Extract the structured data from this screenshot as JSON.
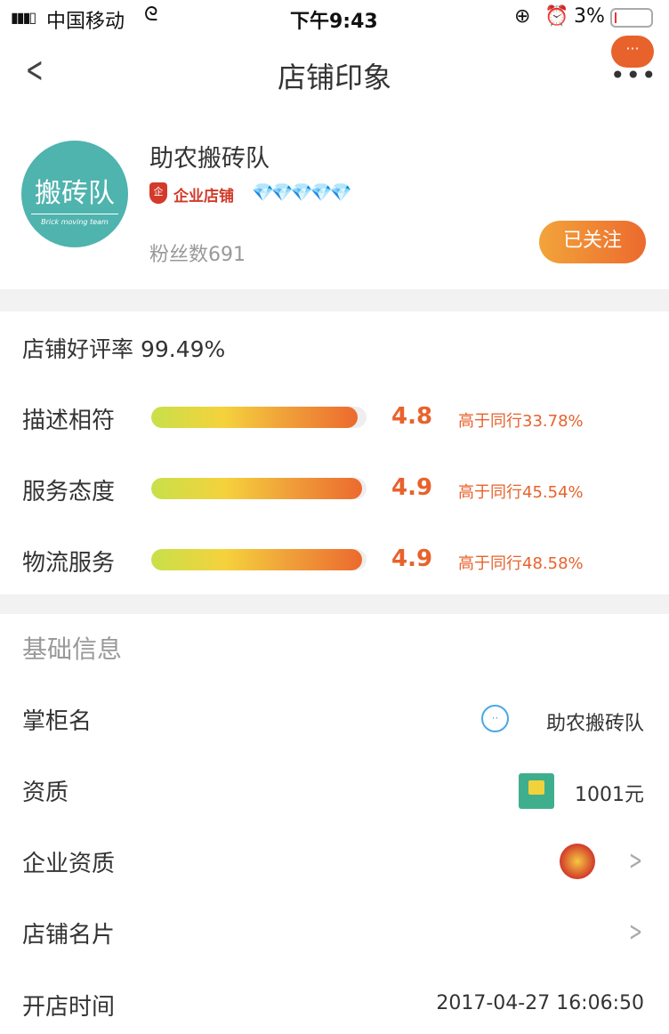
{
  "status_bar": {
    "carrier": "中国移动",
    "time": "下午9:43",
    "battery": "3%"
  },
  "nav": {
    "title": "店铺印象"
  },
  "shop": {
    "name": "助农搬砖队",
    "logo_text": "搬砖队",
    "logo_subtext": "Brick moving team",
    "badge": "企业店铺",
    "diamonds": 5,
    "fans": "粉丝数691",
    "follow_label": "已关注"
  },
  "ratings": {
    "title": "店铺好评率 99.49%",
    "items": [
      {
        "label": "描述相符",
        "score": "4.8",
        "compare": "高于同行33.78%",
        "fraction": 0.96
      },
      {
        "label": "服务态度",
        "score": "4.9",
        "compare": "高于同行45.54%",
        "fraction": 0.98
      },
      {
        "label": "物流服务",
        "score": "4.9",
        "compare": "高于同行48.58%",
        "fraction": 0.98
      }
    ]
  },
  "basic": {
    "title": "基础信息",
    "rows": [
      {
        "label": "掌柜名",
        "value": "助农搬砖队"
      },
      {
        "label": "资质",
        "value": "1001元"
      },
      {
        "label": "企业资质",
        "value": ""
      },
      {
        "label": "店铺名片",
        "value": ""
      },
      {
        "label": "开店时间",
        "value": "2017-04-27 16:06:50"
      }
    ]
  },
  "colors": {
    "accent": "#e8622c",
    "logo": "#4fb3ae"
  }
}
